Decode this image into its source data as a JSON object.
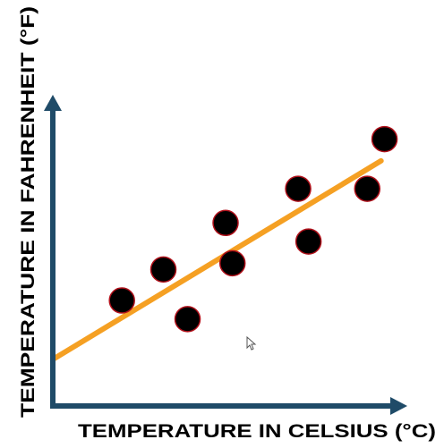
{
  "colors": {
    "axis": "#1f4b68",
    "trend": "#f5a023",
    "point_fill": "#000000",
    "point_stroke": "#b0101a"
  },
  "chart_data": {
    "type": "scatter",
    "xlabel": "TEMPERATURE IN CELSIUS (°C)",
    "ylabel": "TEMPERATURE IN FAHRENHEIT (°F)",
    "xlim": [
      0,
      100
    ],
    "ylim": [
      0,
      100
    ],
    "grid": false,
    "points": [
      {
        "x": 20,
        "y": 34
      },
      {
        "x": 32,
        "y": 44
      },
      {
        "x": 39,
        "y": 28
      },
      {
        "x": 50,
        "y": 59
      },
      {
        "x": 52,
        "y": 46
      },
      {
        "x": 71,
        "y": 70
      },
      {
        "x": 74,
        "y": 53
      },
      {
        "x": 91,
        "y": 70
      },
      {
        "x": 96,
        "y": 86
      }
    ],
    "trendline": {
      "x": [
        0,
        95
      ],
      "y": [
        15,
        79
      ]
    }
  }
}
